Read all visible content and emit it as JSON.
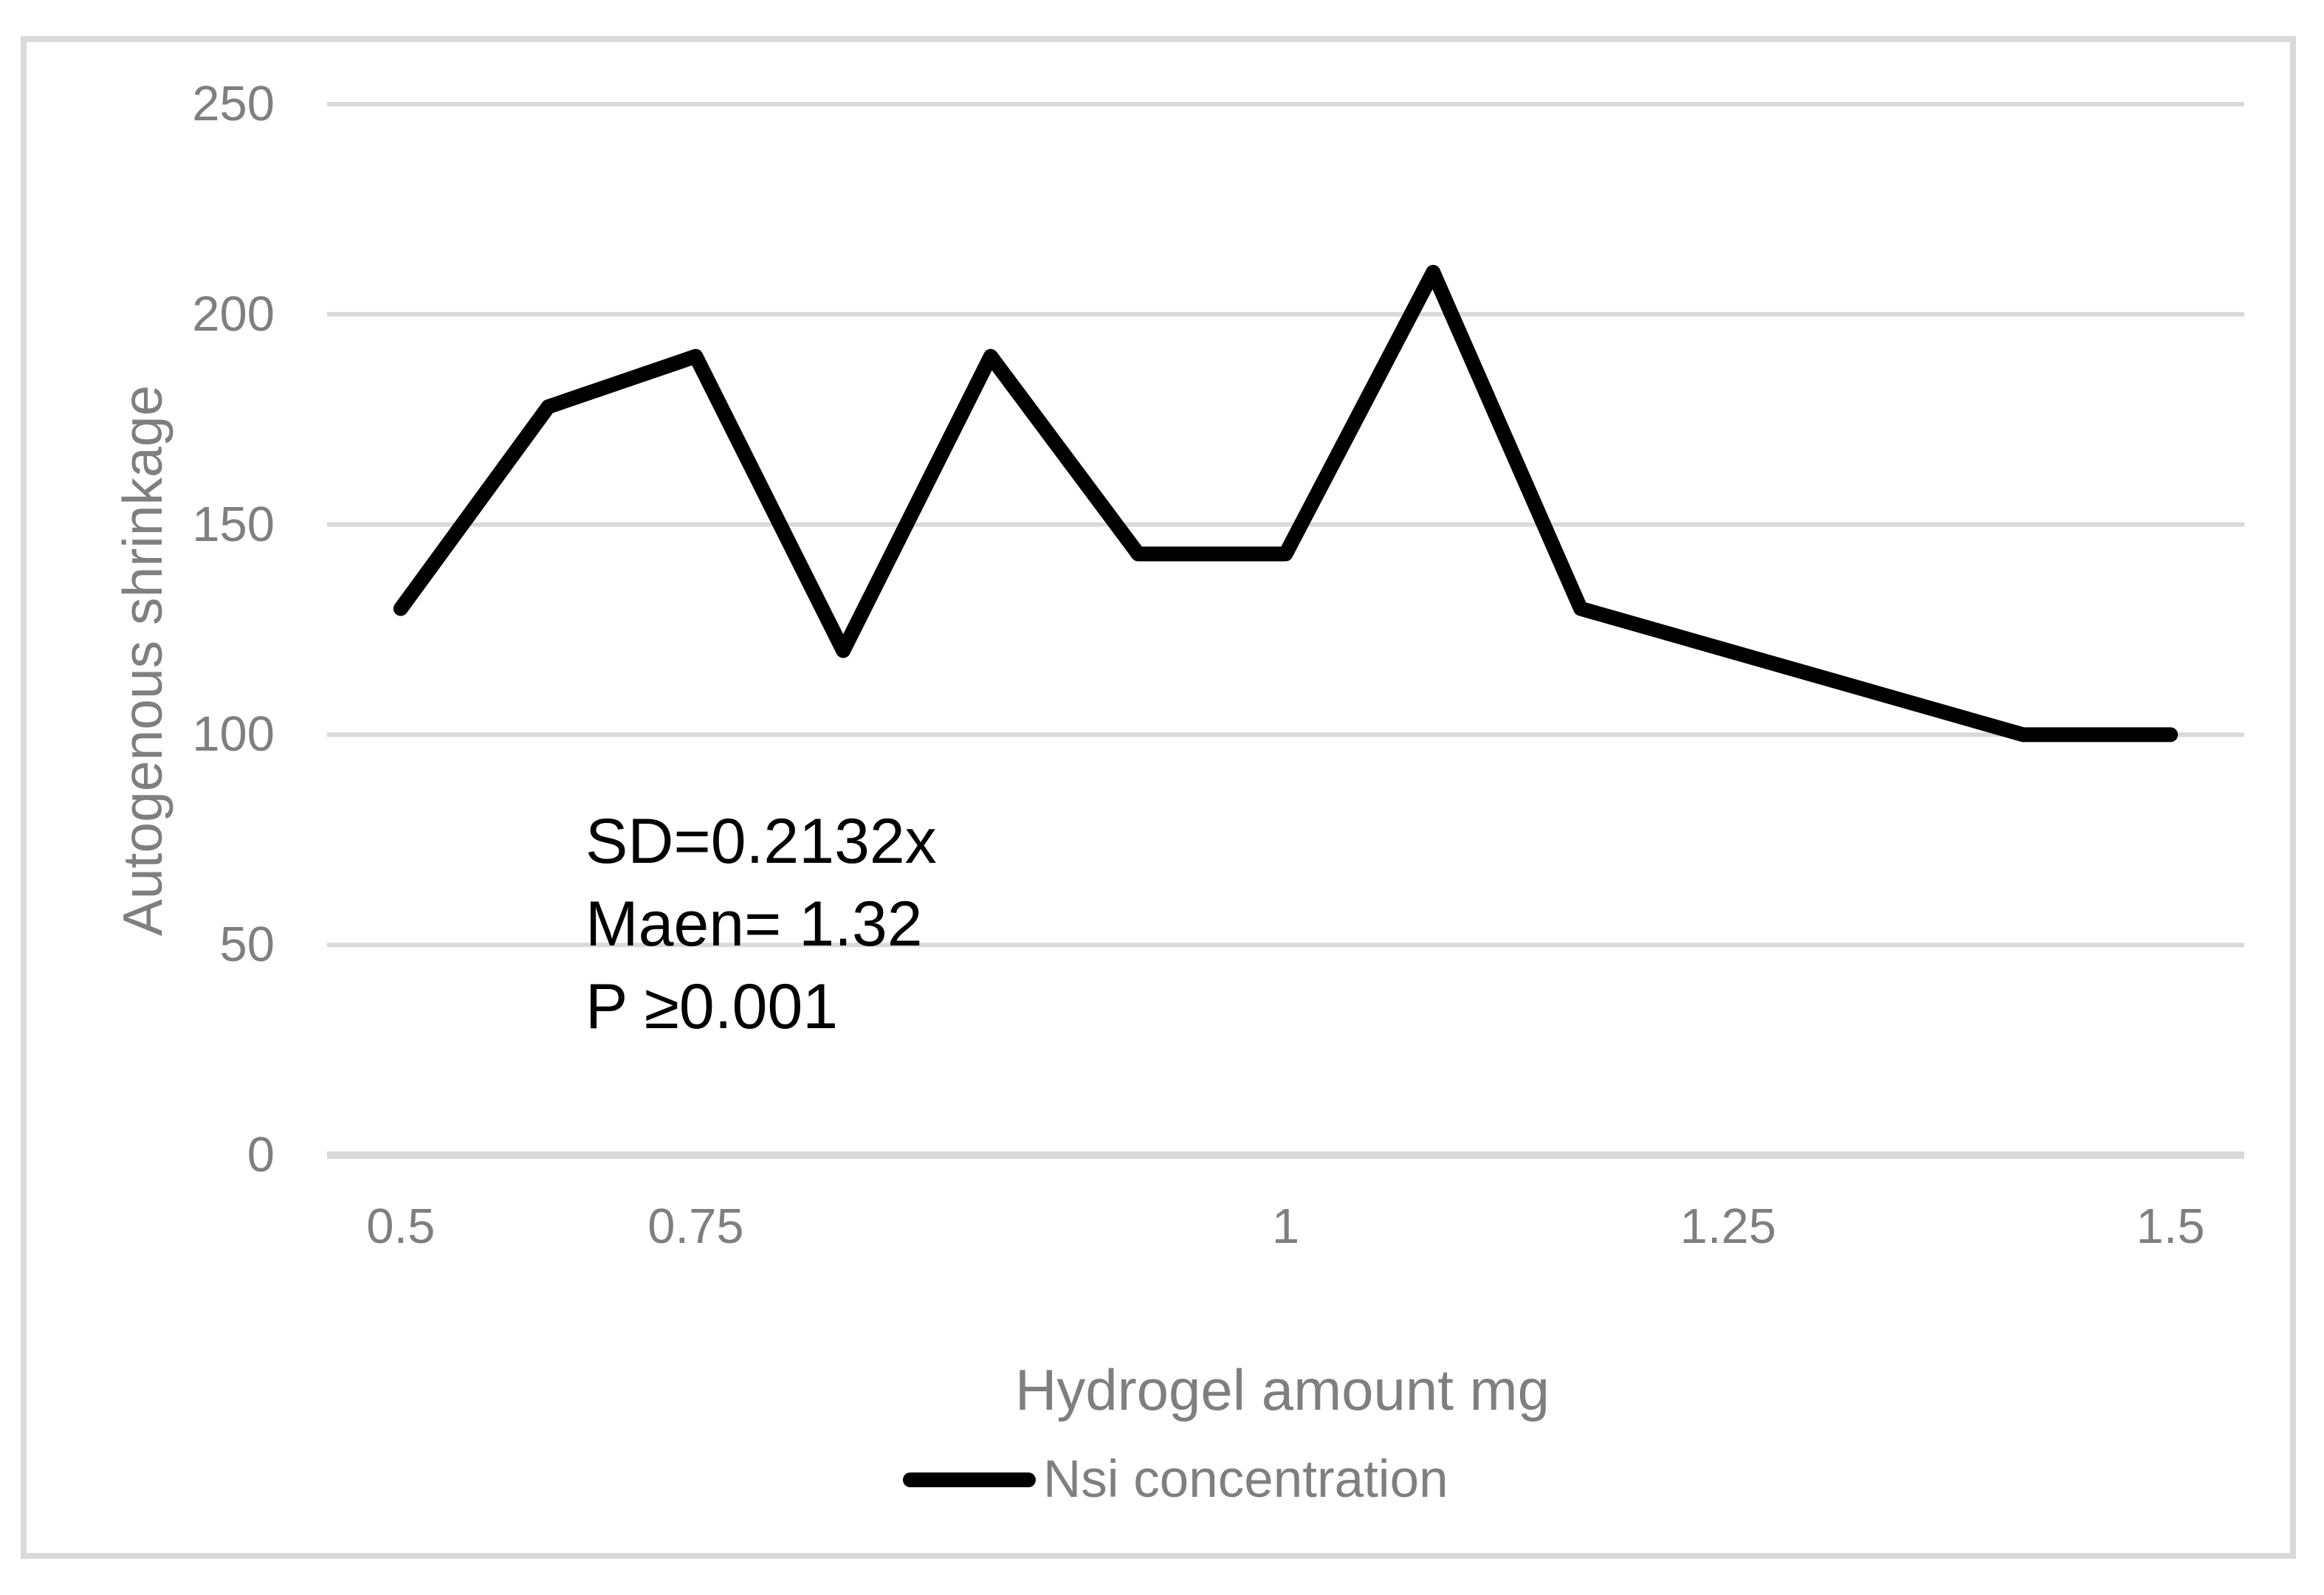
{
  "chart_data": {
    "type": "line",
    "title": "",
    "xlabel": "Hydrogel amount mg",
    "ylabel": "Autogenous shrinkage",
    "x_axis": {
      "num_categories": 13,
      "tick_labels": [
        {
          "label": "0.5",
          "category_index": 0
        },
        {
          "label": "0.75",
          "category_index": 2
        },
        {
          "label": "1",
          "category_index": 6
        },
        {
          "label": "1.25",
          "category_index": 9
        },
        {
          "label": "1.5",
          "category_index": 12
        }
      ]
    },
    "y_axis": {
      "min": 0,
      "max": 250,
      "ticks": [
        0,
        50,
        100,
        150,
        200,
        250
      ]
    },
    "series": [
      {
        "name": "Nsi concentration",
        "color": "#000000",
        "values": [
          130,
          178,
          190,
          120,
          190,
          143,
          143,
          210,
          130,
          120,
          110,
          100,
          100
        ]
      }
    ],
    "grid": "horizontal",
    "legend_position": "bottom-center",
    "annotation": {
      "lines": [
        "SD=0.2132x",
        "Maen= 1.32",
        "P ≥0.001"
      ]
    }
  },
  "colors": {
    "line": "#000000",
    "gridline": "#d9d9d9",
    "axis_line": "#d9d9d9",
    "border": "#d9d9d9",
    "text": "#7f7f7f",
    "annotation_text": "#000000",
    "background": "#ffffff"
  }
}
